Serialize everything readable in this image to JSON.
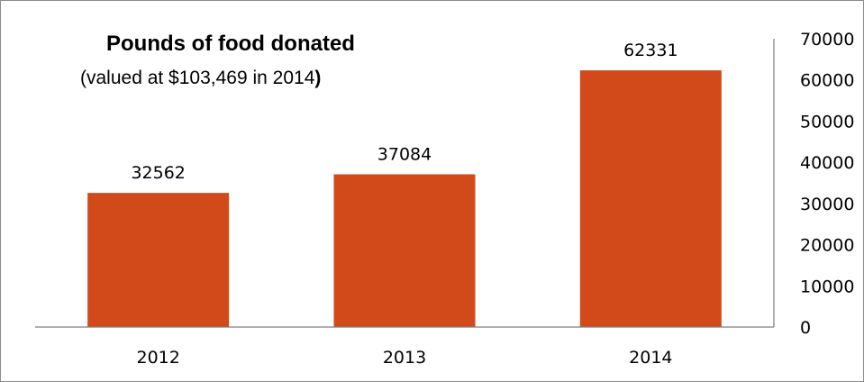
{
  "chart_data": {
    "type": "bar",
    "title": "Pounds of food donated",
    "subtitle": "(valued at $103,469 in 2014",
    "subtitle_close": ")",
    "categories": [
      "2012",
      "2013",
      "2014"
    ],
    "values": [
      32562,
      37084,
      62331
    ],
    "data_labels": [
      "32562",
      "37084",
      "62331"
    ],
    "y_ticks": [
      "0",
      "10000",
      "20000",
      "30000",
      "40000",
      "50000",
      "60000",
      "70000"
    ],
    "ylim": [
      0,
      70000
    ],
    "y_axis_position": "right",
    "grid": false,
    "bar_color": "#d24a19"
  }
}
